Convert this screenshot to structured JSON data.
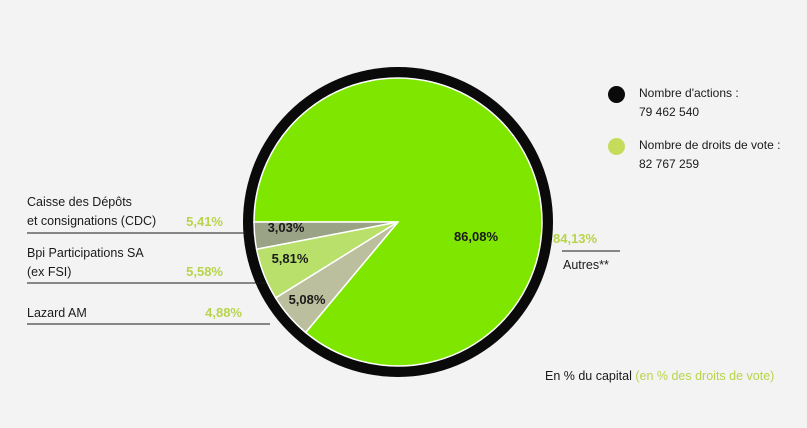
{
  "chart_data": {
    "type": "pie",
    "slices": [
      {
        "label": "Autres**",
        "capital_pct": 86.08,
        "capital_label": "86,08%",
        "vote_label": "84,13%",
        "color": "#7fe600"
      },
      {
        "label": "Caisse des Dépôts et consignations (CDC)",
        "capital_pct": 3.03,
        "capital_label": "3,03%",
        "vote_label": "5,41%",
        "color": "#9aa386"
      },
      {
        "label": "Bpi Participations SA (ex FSI)",
        "capital_pct": 5.81,
        "capital_label": "5,81%",
        "vote_label": "5,58%",
        "color": "#b8e06b"
      },
      {
        "label": "Lazard AM",
        "capital_pct": 5.08,
        "capital_label": "5,08%",
        "vote_label": "4,88%",
        "color": "#bcbf9e"
      }
    ],
    "colors": {
      "ring": "#0a0a0a",
      "vote_pct": "#b8d44a"
    }
  },
  "labels": {
    "cdc_line1": "Caisse des Dépôts",
    "cdc_line2": "et consignations (CDC)",
    "bpi_line1": "Bpi Participations SA",
    "bpi_line2": "(ex FSI)",
    "lazard": "Lazard AM",
    "autres": "Autres**"
  },
  "legend": {
    "actions_label": "Nombre d'actions :",
    "actions_value": "79 462 540",
    "actions_color": "#0a0a0a",
    "votes_label": "Nombre de droits de vote :",
    "votes_value": "82 767 259",
    "votes_color": "#c5dc5a"
  },
  "footer": {
    "main": "En % du capital",
    "paren": "(en % des droits de vote)"
  }
}
